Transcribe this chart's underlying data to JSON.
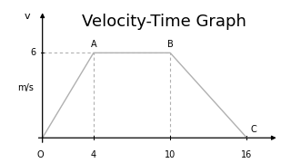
{
  "title": "Velocity-Time Graph",
  "title_fontsize": 13,
  "points": {
    "O": [
      0,
      0
    ],
    "A": [
      4,
      6
    ],
    "B": [
      10,
      6
    ],
    "C": [
      16,
      0
    ]
  },
  "line_x": [
    0,
    4,
    10,
    16
  ],
  "line_y": [
    0,
    6,
    6,
    0
  ],
  "dashed_points": [
    {
      "x": [
        4,
        4
      ],
      "y": [
        0,
        6
      ]
    },
    {
      "x": [
        10,
        10
      ],
      "y": [
        0,
        6
      ]
    },
    {
      "x": [
        0,
        10
      ],
      "y": [
        6,
        6
      ]
    }
  ],
  "xticks": [
    4,
    10,
    16
  ],
  "ytick_val": 6,
  "ylabel": "v",
  "ylabel2": "m/s",
  "xlabel_O": "O",
  "line_color": "#b0b0b0",
  "dashed_color": "#b0b0b0",
  "axis_color": "#000000",
  "background_color": "#ffffff",
  "xlim": [
    -1.5,
    19
  ],
  "ylim": [
    -1.2,
    9.5
  ]
}
